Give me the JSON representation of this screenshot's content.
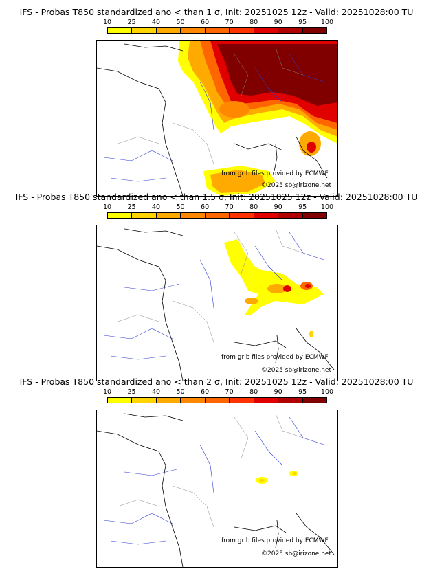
{
  "colorbar": {
    "ticks": [
      "10",
      "25",
      "40",
      "50",
      "60",
      "70",
      "80",
      "90",
      "95",
      "100"
    ],
    "colors": [
      "#ffff00",
      "#ffd400",
      "#ffaa00",
      "#ff8800",
      "#ff6600",
      "#ff3300",
      "#e00000",
      "#b00000",
      "#800000"
    ]
  },
  "panels": [
    {
      "title": "IFS - Probas T850  standardized ano < than 1 σ, Init: 20251025 12z - Valid: 20251028:00 TU",
      "credit_source": "from grib files provided by ECMWF",
      "credit_copyright": "©2025 sb@irizone.net"
    },
    {
      "title": "IFS - Probas T850  standardized ano < than 1.5 σ, Init: 20251025 12z - Valid: 20251028:00 TU",
      "credit_source": "from grib files provided by ECMWF",
      "credit_copyright": "©2025 sb@irizone.net"
    },
    {
      "title": "IFS - Probas T850  standardized ano < than 2 σ, Init: 20251025 12z - Valid: 20251028:00 TU",
      "credit_source": "from grib files provided by ECMWF",
      "credit_copyright": "©2025 sb@irizone.net"
    }
  ]
}
